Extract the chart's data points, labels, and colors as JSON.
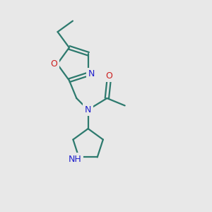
{
  "bg_color": "#e8e8e8",
  "bond_color": "#2d7a6e",
  "N_color": "#2020cc",
  "O_color": "#cc2020",
  "line_width": 1.6,
  "fig_size": [
    3.0,
    3.0
  ],
  "dpi": 100,
  "xlim": [
    0,
    10
  ],
  "ylim": [
    0,
    10
  ]
}
